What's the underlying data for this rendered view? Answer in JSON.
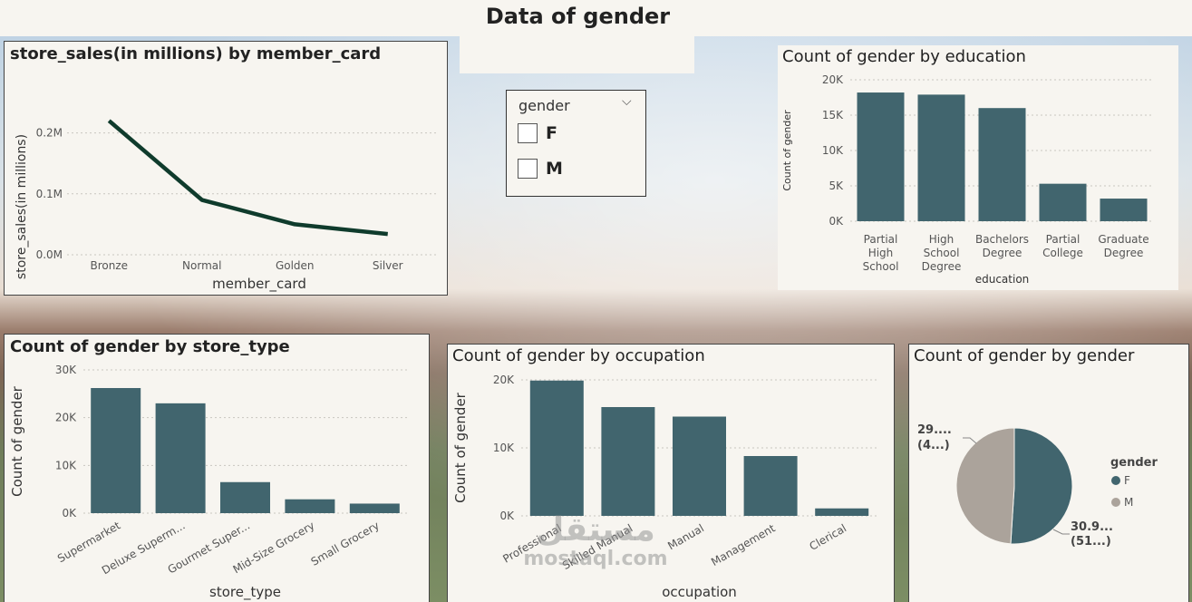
{
  "page": {
    "title": "Data of gender"
  },
  "slicer": {
    "title": "gender",
    "options": [
      "F",
      "M"
    ]
  },
  "watermark": {
    "arabic": "مستقل",
    "latin": "mostaql.com"
  },
  "chart_data": [
    {
      "id": "store_sales_by_member_card",
      "type": "line",
      "title": "store_sales(in millions) by member_card",
      "xlabel": "member_card",
      "ylabel": "store_sales(in millions)",
      "categories": [
        "Bronze",
        "Normal",
        "Golden",
        "Silver"
      ],
      "values": [
        0.22,
        0.09,
        0.05,
        0.034
      ],
      "ylim": [
        0,
        0.25
      ],
      "yticks": [
        0,
        0.1,
        0.2
      ],
      "ytick_labels": [
        "0.0M",
        "0.1M",
        "0.2M"
      ],
      "grid": true,
      "color": "#0f3b2c"
    },
    {
      "id": "gender_by_education",
      "type": "bar",
      "title": "Count of gender by education",
      "xlabel": "education",
      "ylabel": "Count of gender",
      "categories": [
        [
          "Partial",
          "High",
          "School"
        ],
        [
          "High",
          "School",
          "Degree"
        ],
        [
          "Bachelors",
          "Degree"
        ],
        [
          "Partial",
          "College"
        ],
        [
          "Graduate",
          "Degree"
        ]
      ],
      "values": [
        18200,
        17900,
        16000,
        5300,
        3200
      ],
      "ylim": [
        0,
        20000
      ],
      "yticks": [
        0,
        5000,
        10000,
        15000,
        20000
      ],
      "ytick_labels": [
        "0K",
        "5K",
        "10K",
        "15K",
        "20K"
      ],
      "grid": true,
      "color": "#41656e"
    },
    {
      "id": "gender_by_store_type",
      "type": "bar",
      "title": "Count of gender by store_type",
      "xlabel": "store_type",
      "ylabel": "Count of gender",
      "categories": [
        "Supermarket",
        "Deluxe Superm...",
        "Gourmet Super...",
        "Mid-Size Grocery",
        "Small Grocery"
      ],
      "values": [
        26200,
        23000,
        6500,
        2900,
        2000
      ],
      "ylim": [
        0,
        30000
      ],
      "yticks": [
        0,
        10000,
        20000,
        30000
      ],
      "ytick_labels": [
        "0K",
        "10K",
        "20K",
        "30K"
      ],
      "grid": true,
      "color": "#41656e"
    },
    {
      "id": "gender_by_occupation",
      "type": "bar",
      "title": "Count of gender by occupation",
      "xlabel": "occupation",
      "ylabel": "Count of gender",
      "categories": [
        "Professional",
        "Skilled Manual",
        "Manual",
        "Management",
        "Clerical"
      ],
      "values": [
        19900,
        16000,
        14600,
        8800,
        1100
      ],
      "ylim": [
        0,
        20000
      ],
      "yticks": [
        0,
        10000,
        20000
      ],
      "ytick_labels": [
        "0K",
        "10K",
        "20K"
      ],
      "grid": true,
      "color": "#41656e"
    },
    {
      "id": "gender_by_gender",
      "type": "pie",
      "title": "Count of gender by gender",
      "legend_title": "gender",
      "legend_position": "right",
      "slices": [
        {
          "name": "F",
          "value": 51,
          "label1": "30.9...",
          "label2": "(51...)",
          "color": "#41656e"
        },
        {
          "name": "M",
          "value": 49,
          "label1": "29....",
          "label2": "(4...)",
          "color": "#aba39b"
        }
      ]
    }
  ]
}
